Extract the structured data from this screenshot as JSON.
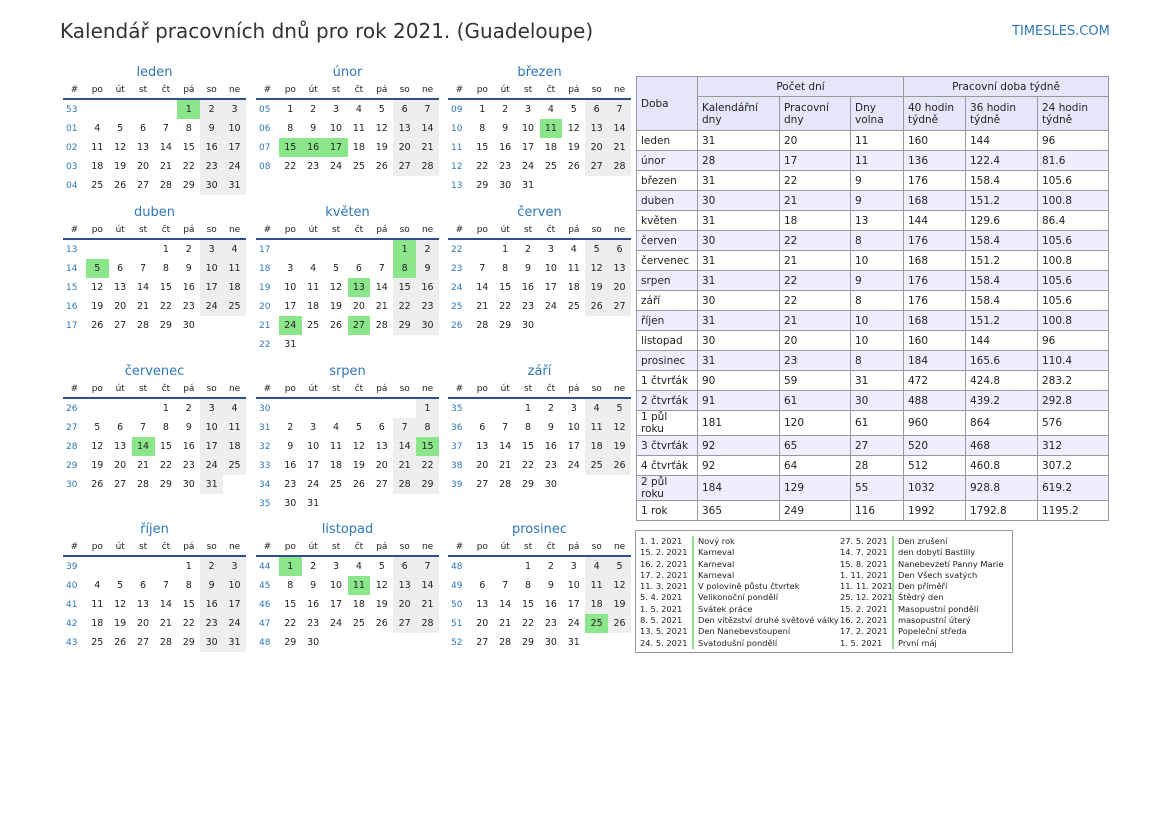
{
  "title": "Kalendář pracovních dnů pro rok 2021. (Guadeloupe)",
  "site": "TIMESLES.COM",
  "colors": {
    "accent": "#2e77b8",
    "holiday": "#8be68b",
    "weekend": "#eeeeee",
    "header_bg": "#e6e6fa"
  },
  "week_header": [
    "#",
    "po",
    "út",
    "st",
    "čt",
    "pá",
    "so",
    "ne"
  ],
  "months": [
    {
      "name": "leden",
      "rows": [
        [
          "53",
          "",
          "",
          "",
          "",
          "1",
          "2",
          "3"
        ],
        [
          "01",
          "4",
          "5",
          "6",
          "7",
          "8",
          "9",
          "10"
        ],
        [
          "02",
          "11",
          "12",
          "13",
          "14",
          "15",
          "16",
          "17"
        ],
        [
          "03",
          "18",
          "19",
          "20",
          "21",
          "22",
          "23",
          "24"
        ],
        [
          "04",
          "25",
          "26",
          "27",
          "28",
          "29",
          "30",
          "31"
        ]
      ],
      "holidays": [
        "1"
      ]
    },
    {
      "name": "únor",
      "rows": [
        [
          "05",
          "1",
          "2",
          "3",
          "4",
          "5",
          "6",
          "7"
        ],
        [
          "06",
          "8",
          "9",
          "10",
          "11",
          "12",
          "13",
          "14"
        ],
        [
          "07",
          "15",
          "16",
          "17",
          "18",
          "19",
          "20",
          "21"
        ],
        [
          "08",
          "22",
          "23",
          "24",
          "25",
          "26",
          "27",
          "28"
        ]
      ],
      "holidays": [
        "15",
        "16",
        "17"
      ]
    },
    {
      "name": "březen",
      "rows": [
        [
          "09",
          "1",
          "2",
          "3",
          "4",
          "5",
          "6",
          "7"
        ],
        [
          "10",
          "8",
          "9",
          "10",
          "11",
          "12",
          "13",
          "14"
        ],
        [
          "11",
          "15",
          "16",
          "17",
          "18",
          "19",
          "20",
          "21"
        ],
        [
          "12",
          "22",
          "23",
          "24",
          "25",
          "26",
          "27",
          "28"
        ],
        [
          "13",
          "29",
          "30",
          "31",
          "",
          "",
          "",
          ""
        ]
      ],
      "holidays": [
        "11"
      ]
    },
    {
      "name": "duben",
      "rows": [
        [
          "13",
          "",
          "",
          "",
          "1",
          "2",
          "3",
          "4"
        ],
        [
          "14",
          "5",
          "6",
          "7",
          "8",
          "9",
          "10",
          "11"
        ],
        [
          "15",
          "12",
          "13",
          "14",
          "15",
          "16",
          "17",
          "18"
        ],
        [
          "16",
          "19",
          "20",
          "21",
          "22",
          "23",
          "24",
          "25"
        ],
        [
          "17",
          "26",
          "27",
          "28",
          "29",
          "30",
          "",
          ""
        ]
      ],
      "holidays": [
        "5"
      ]
    },
    {
      "name": "květen",
      "rows": [
        [
          "17",
          "",
          "",
          "",
          "",
          "",
          "1",
          "2"
        ],
        [
          "18",
          "3",
          "4",
          "5",
          "6",
          "7",
          "8",
          "9"
        ],
        [
          "19",
          "10",
          "11",
          "12",
          "13",
          "14",
          "15",
          "16"
        ],
        [
          "20",
          "17",
          "18",
          "19",
          "20",
          "21",
          "22",
          "23"
        ],
        [
          "21",
          "24",
          "25",
          "26",
          "27",
          "28",
          "29",
          "30"
        ],
        [
          "22",
          "31",
          "",
          "",
          "",
          "",
          "",
          ""
        ]
      ],
      "holidays": [
        "1",
        "8",
        "13",
        "24",
        "27"
      ]
    },
    {
      "name": "červen",
      "rows": [
        [
          "22",
          "",
          "1",
          "2",
          "3",
          "4",
          "5",
          "6"
        ],
        [
          "23",
          "7",
          "8",
          "9",
          "10",
          "11",
          "12",
          "13"
        ],
        [
          "24",
          "14",
          "15",
          "16",
          "17",
          "18",
          "19",
          "20"
        ],
        [
          "25",
          "21",
          "22",
          "23",
          "24",
          "25",
          "26",
          "27"
        ],
        [
          "26",
          "28",
          "29",
          "30",
          "",
          "",
          "",
          ""
        ]
      ],
      "holidays": []
    },
    {
      "name": "červenec",
      "rows": [
        [
          "26",
          "",
          "",
          "",
          "1",
          "2",
          "3",
          "4"
        ],
        [
          "27",
          "5",
          "6",
          "7",
          "8",
          "9",
          "10",
          "11"
        ],
        [
          "28",
          "12",
          "13",
          "14",
          "15",
          "16",
          "17",
          "18"
        ],
        [
          "29",
          "19",
          "20",
          "21",
          "22",
          "23",
          "24",
          "25"
        ],
        [
          "30",
          "26",
          "27",
          "28",
          "29",
          "30",
          "31",
          ""
        ]
      ],
      "holidays": [
        "14"
      ]
    },
    {
      "name": "srpen",
      "rows": [
        [
          "30",
          "",
          "",
          "",
          "",
          "",
          "",
          "1"
        ],
        [
          "31",
          "2",
          "3",
          "4",
          "5",
          "6",
          "7",
          "8"
        ],
        [
          "32",
          "9",
          "10",
          "11",
          "12",
          "13",
          "14",
          "15"
        ],
        [
          "33",
          "16",
          "17",
          "18",
          "19",
          "20",
          "21",
          "22"
        ],
        [
          "34",
          "23",
          "24",
          "25",
          "26",
          "27",
          "28",
          "29"
        ],
        [
          "35",
          "30",
          "31",
          "",
          "",
          "",
          "",
          ""
        ]
      ],
      "holidays": [
        "15"
      ]
    },
    {
      "name": "září",
      "rows": [
        [
          "35",
          "",
          "",
          "1",
          "2",
          "3",
          "4",
          "5"
        ],
        [
          "36",
          "6",
          "7",
          "8",
          "9",
          "10",
          "11",
          "12"
        ],
        [
          "37",
          "13",
          "14",
          "15",
          "16",
          "17",
          "18",
          "19"
        ],
        [
          "38",
          "20",
          "21",
          "22",
          "23",
          "24",
          "25",
          "26"
        ],
        [
          "39",
          "27",
          "28",
          "29",
          "30",
          "",
          "",
          ""
        ]
      ],
      "holidays": []
    },
    {
      "name": "říjen",
      "rows": [
        [
          "39",
          "",
          "",
          "",
          "",
          "1",
          "2",
          "3"
        ],
        [
          "40",
          "4",
          "5",
          "6",
          "7",
          "8",
          "9",
          "10"
        ],
        [
          "41",
          "11",
          "12",
          "13",
          "14",
          "15",
          "16",
          "17"
        ],
        [
          "42",
          "18",
          "19",
          "20",
          "21",
          "22",
          "23",
          "24"
        ],
        [
          "43",
          "25",
          "26",
          "27",
          "28",
          "29",
          "30",
          "31"
        ]
      ],
      "holidays": []
    },
    {
      "name": "listopad",
      "rows": [
        [
          "44",
          "1",
          "2",
          "3",
          "4",
          "5",
          "6",
          "7"
        ],
        [
          "45",
          "8",
          "9",
          "10",
          "11",
          "12",
          "13",
          "14"
        ],
        [
          "46",
          "15",
          "16",
          "17",
          "18",
          "19",
          "20",
          "21"
        ],
        [
          "47",
          "22",
          "23",
          "24",
          "25",
          "26",
          "27",
          "28"
        ],
        [
          "48",
          "29",
          "30",
          "",
          "",
          "",
          "",
          ""
        ]
      ],
      "holidays": [
        "1",
        "11"
      ]
    },
    {
      "name": "prosinec",
      "rows": [
        [
          "48",
          "",
          "",
          "1",
          "2",
          "3",
          "4",
          "5"
        ],
        [
          "49",
          "6",
          "7",
          "8",
          "9",
          "10",
          "11",
          "12"
        ],
        [
          "50",
          "13",
          "14",
          "15",
          "16",
          "17",
          "18",
          "19"
        ],
        [
          "51",
          "20",
          "21",
          "22",
          "23",
          "24",
          "25",
          "26"
        ],
        [
          "52",
          "27",
          "28",
          "29",
          "30",
          "31",
          "",
          ""
        ]
      ],
      "holidays": [
        "25"
      ]
    }
  ],
  "stats": {
    "period_header": "Doba",
    "group_days": "Počet dní",
    "group_hours": "Pracovní doba týdně",
    "subheaders": [
      "Kalendářní dny",
      "Pracovní dny",
      "Dny volna",
      "40 hodin týdně",
      "36 hodin týdně",
      "24 hodin týdně"
    ],
    "rows": [
      [
        "leden",
        "31",
        "20",
        "11",
        "160",
        "144",
        "96"
      ],
      [
        "únor",
        "28",
        "17",
        "11",
        "136",
        "122.4",
        "81.6"
      ],
      [
        "březen",
        "31",
        "22",
        "9",
        "176",
        "158.4",
        "105.6"
      ],
      [
        "duben",
        "30",
        "21",
        "9",
        "168",
        "151.2",
        "100.8"
      ],
      [
        "květen",
        "31",
        "18",
        "13",
        "144",
        "129.6",
        "86.4"
      ],
      [
        "červen",
        "30",
        "22",
        "8",
        "176",
        "158.4",
        "105.6"
      ],
      [
        "červenec",
        "31",
        "21",
        "10",
        "168",
        "151.2",
        "100.8"
      ],
      [
        "srpen",
        "31",
        "22",
        "9",
        "176",
        "158.4",
        "105.6"
      ],
      [
        "září",
        "30",
        "22",
        "8",
        "176",
        "158.4",
        "105.6"
      ],
      [
        "říjen",
        "31",
        "21",
        "10",
        "168",
        "151.2",
        "100.8"
      ],
      [
        "listopad",
        "30",
        "20",
        "10",
        "160",
        "144",
        "96"
      ],
      [
        "prosinec",
        "31",
        "23",
        "8",
        "184",
        "165.6",
        "110.4"
      ],
      [
        "1 čtvrťák",
        "90",
        "59",
        "31",
        "472",
        "424.8",
        "283.2"
      ],
      [
        "2 čtvrťák",
        "91",
        "61",
        "30",
        "488",
        "439.2",
        "292.8"
      ],
      [
        "1 půl roku",
        "181",
        "120",
        "61",
        "960",
        "864",
        "576"
      ],
      [
        "3 čtvrťák",
        "92",
        "65",
        "27",
        "520",
        "468",
        "312"
      ],
      [
        "4 čtvrťák",
        "92",
        "64",
        "28",
        "512",
        "460.8",
        "307.2"
      ],
      [
        "2 půl roku",
        "184",
        "129",
        "55",
        "1032",
        "928.8",
        "619.2"
      ],
      [
        "1 rok",
        "365",
        "249",
        "116",
        "1992",
        "1792.8",
        "1195.2"
      ]
    ]
  },
  "holidays_legend": [
    [
      {
        "date": "1. 1. 2021",
        "name": "Nový rok"
      },
      {
        "date": "15. 2. 2021",
        "name": "Karneval"
      },
      {
        "date": "16. 2. 2021",
        "name": "Karneval"
      },
      {
        "date": "17. 2. 2021",
        "name": "Karneval"
      },
      {
        "date": "11. 3. 2021",
        "name": "V polovině půstu čtvrtek"
      },
      {
        "date": "5. 4. 2021",
        "name": "Velikonoční pondělí"
      },
      {
        "date": "1. 5. 2021",
        "name": "Svátek práce"
      },
      {
        "date": "8. 5. 2021",
        "name": "Den vítězství druhé světové války"
      },
      {
        "date": "13. 5. 2021",
        "name": "Den Nanebevstoupení"
      },
      {
        "date": "24. 5. 2021",
        "name": "Svatodušní pondělí"
      }
    ],
    [
      {
        "date": "27. 5. 2021",
        "name": "Den zrušení"
      },
      {
        "date": "14. 7. 2021",
        "name": "den dobytí Bastilly"
      },
      {
        "date": "15. 8. 2021",
        "name": "Nanebevzetí Panny Marie"
      },
      {
        "date": "1. 11. 2021",
        "name": "Den Všech svatých"
      },
      {
        "date": "11. 11. 2021",
        "name": "Den příměří"
      },
      {
        "date": "25. 12. 2021",
        "name": "Štědrý den"
      },
      {
        "date": "15. 2. 2021",
        "name": "Masopustní pondělí"
      },
      {
        "date": "16. 2. 2021",
        "name": "masopustní úterý"
      },
      {
        "date": "17. 2. 2021",
        "name": "Popeleční středa"
      },
      {
        "date": "1. 5. 2021",
        "name": "První máj"
      }
    ]
  ]
}
